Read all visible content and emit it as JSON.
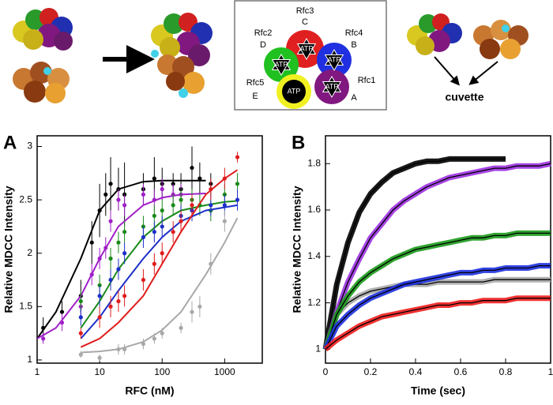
{
  "diagram": {
    "subunits": [
      {
        "name": "Rfc3",
        "site": "C"
      },
      {
        "name": "Rfc2",
        "site": "D"
      },
      {
        "name": "Rfc4",
        "site": "B"
      },
      {
        "name": "Rfc5",
        "site": "E"
      },
      {
        "name": "Rfc1",
        "site": "A"
      }
    ],
    "nucleotide": "ATP",
    "destination": "cuvette"
  },
  "chart_data": [
    {
      "type": "scatter",
      "panel_label": "A",
      "x_label": "RFC (nM)",
      "y_label": "Relative MDCC Intensity",
      "x_scale": "log",
      "xlim": [
        1,
        4000
      ],
      "xticks": [
        1,
        10,
        100,
        1000
      ],
      "ylim": [
        0.97,
        3.1
      ],
      "yticks": [
        1,
        1.5,
        2,
        2.5,
        3
      ],
      "fit_x": [
        1,
        2,
        5,
        10,
        20,
        50,
        100,
        200,
        500,
        1000,
        1600
      ],
      "series": [
        {
          "color": "#000000",
          "x": [
            1.25,
            2.5,
            5,
            7.5,
            10,
            12.5,
            15,
            20,
            25,
            50,
            75,
            100,
            150,
            200,
            300,
            400,
            600
          ],
          "values": [
            1.3,
            1.45,
            1.6,
            2.1,
            2.4,
            2.55,
            2.65,
            2.6,
            2.55,
            2.6,
            2.7,
            2.65,
            2.65,
            2.6,
            2.8,
            2.7,
            2.65
          ],
          "errors": [
            0.1,
            0.1,
            0.15,
            0.2,
            0.25,
            0.2,
            0.25,
            0.2,
            0.3,
            0.15,
            0.2,
            0.15,
            0.1,
            0.15,
            0.2,
            0.15,
            0.1
          ],
          "fit": [
            1.2,
            1.45,
            1.95,
            2.4,
            2.6,
            2.67,
            2.68,
            2.68,
            2.68,
            null,
            null
          ]
        },
        {
          "color": "#a020c8",
          "x": [
            1.25,
            2.5,
            5,
            7.5,
            10,
            12.5,
            15,
            20,
            25,
            50,
            75,
            100,
            150,
            200
          ],
          "values": [
            1.2,
            1.35,
            1.5,
            1.8,
            1.95,
            2.05,
            2.3,
            2.5,
            2.45,
            2.55,
            2.5,
            2.6,
            2.55,
            2.55
          ],
          "errors": [
            0.05,
            0.08,
            0.1,
            0.1,
            0.1,
            0.1,
            0.1,
            0.1,
            0.1,
            0.1,
            0.1,
            0.1,
            0.1,
            0.1
          ],
          "fit": [
            1.2,
            1.3,
            1.6,
            1.95,
            2.25,
            2.45,
            2.52,
            2.55,
            2.56,
            null,
            null
          ]
        },
        {
          "color": "#1a8a1a",
          "x": [
            5,
            10,
            15,
            20,
            25,
            50,
            75,
            100,
            150,
            200,
            300,
            400,
            600,
            1000,
            1600
          ],
          "values": [
            1.55,
            1.7,
            1.95,
            2.1,
            2.2,
            2.25,
            2.35,
            2.4,
            2.45,
            2.5,
            2.5,
            2.45,
            2.4,
            2.55,
            2.65
          ],
          "errors": [
            0.1,
            0.1,
            0.1,
            0.1,
            0.1,
            0.1,
            0.1,
            0.1,
            0.1,
            0.1,
            0.1,
            0.1,
            0.1,
            0.1,
            0.1
          ],
          "fit": [
            null,
            null,
            1.3,
            1.55,
            1.85,
            2.15,
            2.3,
            2.4,
            2.45,
            2.48,
            2.49
          ]
        },
        {
          "color": "#1c2fc8",
          "x": [
            5,
            10,
            15,
            20,
            25,
            50,
            75,
            100,
            200,
            300,
            600,
            1000,
            1600
          ],
          "values": [
            1.4,
            1.6,
            1.75,
            1.85,
            2.0,
            2.15,
            2.2,
            2.25,
            2.35,
            2.4,
            2.45,
            2.45,
            2.5
          ],
          "errors": [
            0.08,
            0.1,
            0.1,
            0.1,
            0.1,
            0.1,
            0.1,
            0.1,
            0.1,
            0.1,
            0.1,
            0.1,
            0.1
          ],
          "fit": [
            null,
            null,
            1.2,
            1.4,
            1.65,
            1.95,
            2.15,
            2.3,
            2.4,
            2.43,
            2.45
          ]
        },
        {
          "color": "#e01c1c",
          "x": [
            5,
            10,
            15,
            20,
            25,
            50,
            75,
            100,
            150,
            200,
            300,
            600,
            1000,
            1600
          ],
          "values": [
            1.25,
            1.4,
            1.5,
            1.55,
            1.6,
            1.75,
            1.9,
            2.0,
            2.2,
            2.3,
            2.45,
            2.6,
            2.7,
            2.9
          ],
          "errors": [
            0.05,
            0.1,
            0.1,
            0.1,
            0.1,
            0.1,
            0.1,
            0.1,
            0.1,
            0.1,
            0.1,
            0.1,
            0.1,
            0.05
          ],
          "fit": [
            null,
            null,
            1.12,
            1.2,
            1.35,
            1.6,
            1.9,
            2.2,
            2.55,
            2.7,
            2.78
          ]
        },
        {
          "color": "#a8a8a8",
          "x": [
            5,
            10,
            20,
            25,
            50,
            75,
            100,
            200,
            300,
            400,
            600,
            1000
          ],
          "values": [
            1.05,
            1.02,
            1.1,
            1.1,
            1.15,
            1.2,
            1.25,
            1.3,
            1.45,
            1.5,
            1.9,
            2.3
          ],
          "errors": [
            0.03,
            0.03,
            0.05,
            0.05,
            0.05,
            0.05,
            0.05,
            0.05,
            0.1,
            0.1,
            0.1,
            0.1
          ],
          "fit": [
            null,
            null,
            1.07,
            1.08,
            1.1,
            1.17,
            1.28,
            1.45,
            1.8,
            2.1,
            2.33
          ]
        }
      ]
    },
    {
      "type": "line",
      "panel_label": "B",
      "x_label": "Time (sec)",
      "y_label": "Relative MDCC Intensity",
      "fit_color": "#000000",
      "xlim": [
        0,
        1
      ],
      "xticks": [
        0,
        0.2,
        0.4,
        0.6,
        0.8,
        1
      ],
      "ylim": [
        0.94,
        1.92
      ],
      "yticks": [
        1,
        1.2,
        1.4,
        1.6,
        1.8
      ],
      "x": [
        0,
        0.05,
        0.1,
        0.15,
        0.2,
        0.25,
        0.3,
        0.35,
        0.4,
        0.45,
        0.5,
        0.55,
        0.6,
        0.65,
        0.7,
        0.75,
        0.8,
        0.85,
        0.9,
        0.95,
        1
      ],
      "series": [
        {
          "color": "#a8a8a8",
          "values": [
            1.0,
            1.15,
            1.2,
            1.23,
            1.25,
            1.26,
            1.27,
            1.28,
            1.28,
            1.28,
            1.29,
            1.29,
            1.29,
            1.29,
            1.29,
            1.3,
            1.3,
            1.3,
            1.3,
            1.3,
            1.3
          ]
        },
        {
          "color": "#000000",
          "values": [
            1.0,
            1.28,
            1.46,
            1.59,
            1.67,
            1.72,
            1.76,
            1.78,
            1.8,
            1.81,
            1.81,
            1.82,
            1.82,
            1.82,
            1.82,
            1.82,
            1.82,
            null,
            null,
            null,
            null
          ]
        },
        {
          "color": "#9b30e0",
          "values": [
            1.0,
            1.16,
            1.29,
            1.39,
            1.48,
            1.54,
            1.6,
            1.64,
            1.67,
            1.7,
            1.72,
            1.74,
            1.75,
            1.76,
            1.77,
            1.78,
            1.78,
            1.79,
            1.79,
            1.79,
            1.8
          ]
        },
        {
          "color": "#1a9a1a",
          "values": [
            1.0,
            1.15,
            1.23,
            1.29,
            1.33,
            1.36,
            1.39,
            1.41,
            1.43,
            1.44,
            1.45,
            1.46,
            1.47,
            1.48,
            1.48,
            1.49,
            1.49,
            1.5,
            1.5,
            1.5,
            1.5
          ]
        },
        {
          "color": "#1c2fe0",
          "values": [
            1.0,
            1.1,
            1.15,
            1.19,
            1.22,
            1.24,
            1.26,
            1.28,
            1.29,
            1.3,
            1.31,
            1.32,
            1.33,
            1.33,
            1.34,
            1.34,
            1.35,
            1.35,
            1.35,
            1.36,
            1.36
          ]
        },
        {
          "color": "#f01c1c",
          "values": [
            1.0,
            1.04,
            1.07,
            1.1,
            1.12,
            1.14,
            1.15,
            1.16,
            1.17,
            1.18,
            1.19,
            1.19,
            1.2,
            1.2,
            1.21,
            1.21,
            1.21,
            1.22,
            1.22,
            1.22,
            1.22
          ]
        }
      ]
    }
  ]
}
